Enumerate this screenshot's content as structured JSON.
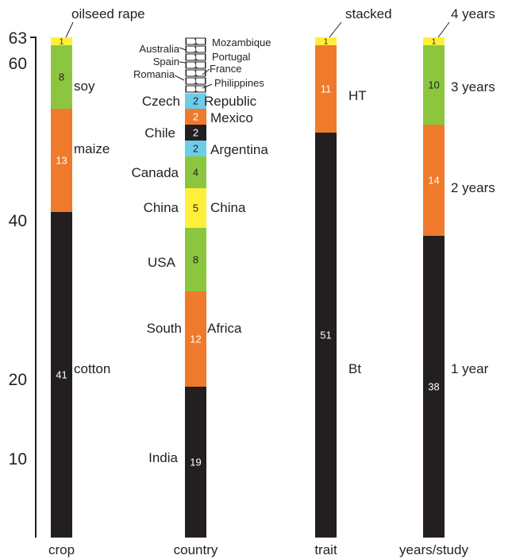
{
  "chart_data": {
    "type": "bar",
    "stacked": true,
    "ylim": [
      0,
      63
    ],
    "y_ticks": [
      "10",
      "20",
      "40",
      "60",
      "63"
    ],
    "y_tick_values": [
      10,
      20,
      40,
      60,
      63
    ],
    "columns": [
      {
        "category": "crop",
        "segments": [
          {
            "label": "cotton",
            "value": 41,
            "color": "#231f20"
          },
          {
            "label": "maize",
            "value": 13,
            "color": "#f07a2b"
          },
          {
            "label": "soy",
            "value": 8,
            "color": "#8cc63f"
          },
          {
            "label": "oilseed rape",
            "value": 1,
            "color": "#ffef3a"
          }
        ]
      },
      {
        "category": "country",
        "segments": [
          {
            "label": "India",
            "value": 19,
            "color": "#231f20"
          },
          {
            "label": "South Africa",
            "value": 12,
            "color": "#f07a2b"
          },
          {
            "label": "USA",
            "value": 8,
            "color": "#8cc63f"
          },
          {
            "label": "China",
            "value": 5,
            "color": "#ffef3a"
          },
          {
            "label": "Canada",
            "value": 4,
            "color": "#8cc63f"
          },
          {
            "label": "Argentina",
            "value": 2,
            "color": "#6ccde9"
          },
          {
            "label": "Chile",
            "value": 2,
            "color": "#231f20"
          },
          {
            "label": "Mexico",
            "value": 2,
            "color": "#f07a2b"
          },
          {
            "label": "Czech Republic",
            "value": 2,
            "color": "#6ccde9"
          },
          {
            "label": "Philippines",
            "value": 1,
            "color": "#231f20"
          },
          {
            "label": "Romania",
            "value": 1,
            "color": "#231f20"
          },
          {
            "label": "France",
            "value": 1,
            "color": "#231f20"
          },
          {
            "label": "Spain",
            "value": 1,
            "color": "#231f20"
          },
          {
            "label": "Portugal",
            "value": 1,
            "color": "#231f20"
          },
          {
            "label": "Australia",
            "value": 1,
            "color": "#231f20"
          },
          {
            "label": "Mozambique",
            "value": 1,
            "color": "#231f20"
          }
        ]
      },
      {
        "category": "trait",
        "segments": [
          {
            "label": "Bt",
            "value": 51,
            "color": "#231f20"
          },
          {
            "label": "HT",
            "value": 11,
            "color": "#f07a2b"
          },
          {
            "label": "stacked",
            "value": 1,
            "color": "#ffef3a"
          }
        ]
      },
      {
        "category": "years/study",
        "segments": [
          {
            "label": "1 year",
            "value": 38,
            "color": "#231f20"
          },
          {
            "label": "2 years",
            "value": 14,
            "color": "#f07a2b"
          },
          {
            "label": "3 years",
            "value": 10,
            "color": "#8cc63f"
          },
          {
            "label": "4 years",
            "value": 1,
            "color": "#ffef3a"
          }
        ]
      }
    ],
    "labels": {
      "oilseed_rape": "oilseed rape",
      "soy": "soy",
      "maize": "maize",
      "cotton": "cotton",
      "mozambique": "Mozambique",
      "australia": "Australia",
      "portugal": "Portugal",
      "spain": "Spain",
      "france": "France",
      "romania": "Romania",
      "philippines": "Philippines",
      "czech": "Czech",
      "republic": "Republic",
      "mexico": "Mexico",
      "chile": "Chile",
      "argentina": "Argentina",
      "canada": "Canada",
      "china_left": "China",
      "china_right": "China",
      "usa": "USA",
      "south": "South",
      "africa": "Africa",
      "india": "India",
      "stacked": "stacked",
      "ht": "HT",
      "bt": "Bt",
      "four_years": "4 years",
      "three_years": "3 years",
      "two_years": "2 years",
      "one_year": "1 year"
    }
  }
}
